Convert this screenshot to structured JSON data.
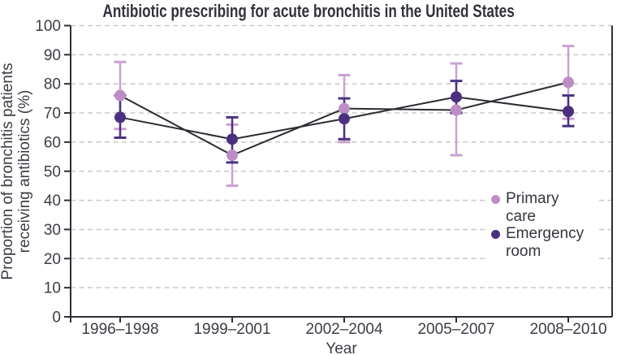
{
  "chart_data": {
    "type": "line",
    "title": "Antibiotic prescribing for acute bronchitis in the United States",
    "xlabel": "Year",
    "ylabel": "Proportion of bronchitis patients receiving antibiotics (%)",
    "ylabel_lines": [
      "Proportion of bronchitis patients",
      "receiving antibiotics (%)"
    ],
    "categories": [
      "1996–1998",
      "1999–2001",
      "2002–2004",
      "2005–2007",
      "2008–2010"
    ],
    "ylim": [
      0,
      100
    ],
    "yticks": [
      0,
      10,
      20,
      30,
      40,
      50,
      60,
      70,
      80,
      90,
      100
    ],
    "grid": "dashed horizontal gridlines at every 10",
    "legend_position": "inside top-right",
    "series": [
      {
        "name": "Primary care",
        "color": "#bd8ec5",
        "errorbar_color": "#c9a2d2",
        "values": [
          76,
          55.5,
          71.5,
          71,
          80.5
        ],
        "ci_low": [
          64.5,
          45,
          60,
          55.5,
          68
        ],
        "ci_high": [
          87.5,
          66,
          83,
          87,
          93
        ]
      },
      {
        "name": "Emergency room",
        "color": "#4a3180",
        "errorbar_color": "#4a3383",
        "values": [
          68.5,
          61,
          68,
          75.5,
          70.5
        ],
        "ci_low": [
          61.5,
          53,
          61,
          70,
          65.5
        ],
        "ci_high": [
          76,
          68.5,
          75,
          81,
          76
        ]
      }
    ],
    "style": {
      "line_color": "#2b2b33",
      "axis_color": "#2e2e38",
      "grid_color": "#c8c8cc",
      "tick_text_color": "#3c3c46",
      "title_color": "#32323c",
      "background": "#ffffff"
    }
  }
}
